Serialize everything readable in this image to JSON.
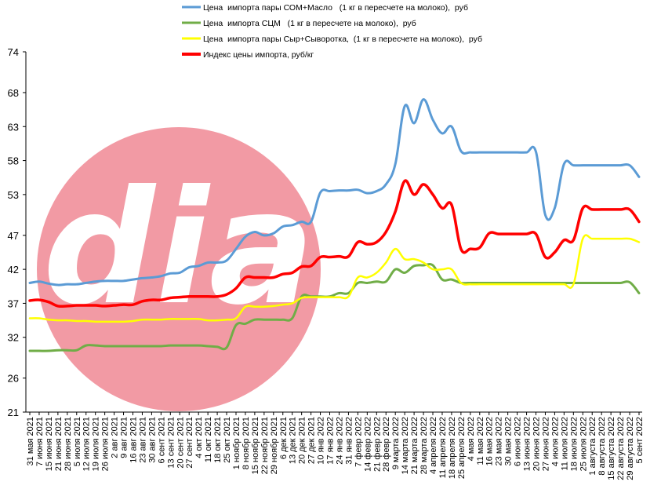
{
  "chart_data": {
    "type": "line",
    "ylim": [
      21,
      74
    ],
    "yticks": [
      21,
      26,
      32,
      37,
      42,
      47,
      53,
      58,
      63,
      68,
      74
    ],
    "grid": false,
    "legend_position": "top",
    "x": [
      "31 мая 2021",
      "7 июня 2021",
      "15 июня 2021",
      "21 июня 2021",
      "28 июня 2021",
      "5 июля 2021",
      "12 июля 2021",
      "19 июля 2021",
      "26 июля 2021",
      "2 авг 2021",
      "9 авг 2021",
      "16 авг 2021",
      "23 авг 2021",
      "30 авг 2021",
      "6 сент 2021",
      "13 сент 2021",
      "20 сент 2021",
      "27 сент 2021",
      "4 окт 2021",
      "11 окт 2021",
      "18 окт 2021",
      "25 окт 2021",
      "1 ноябр 2021",
      "8 ноябр 2021",
      "15 ноябр 2021",
      "22 ноябр 2021",
      "29 ноябр 2021",
      "6 дек 2021",
      "13 дек 2021",
      "20 дек 2021",
      "27 дек 2021",
      "10 янв 2022",
      "17 янв 2022",
      "24 янв 2022",
      "31 янв 2022",
      "7 февр 2022",
      "14 февр 2022",
      "21 февр 2022",
      "28 февр 2022",
      "9 марта 2022",
      "14 марта 2022",
      "21 марта 2022",
      "28 марта 2022",
      "4 апреля 2022",
      "11 апреля 2022",
      "18 апреля 2022",
      "25 апреля 2022",
      "4 мая 2022",
      "11 мая 2022",
      "16 мая 2022",
      "23 мая 2022",
      "30 мая 2022",
      "6 июня 2022",
      "13 июня 2022",
      "20 июня 2022",
      "27 июня 2022",
      "4 июля 2022",
      "11 июля 2022",
      "18 июля 2022",
      "25 июля 2022",
      "1 августа 2022",
      "8 августа 2022",
      "15 августа 2022",
      "22 августа 2022",
      "29 августа 2022",
      "5 сент 2022"
    ],
    "series": [
      {
        "name": "Цена  импорта пары СОМ+Масло   (1 кг в пересчете на молоко),  руб",
        "color": "#5b9bd5",
        "values": [
          40.0,
          40.2,
          39.9,
          39.7,
          39.8,
          39.8,
          40.0,
          40.2,
          40.3,
          40.3,
          40.3,
          40.5,
          40.7,
          40.8,
          41.0,
          41.4,
          41.5,
          42.3,
          42.5,
          43.0,
          43.0,
          43.3,
          45.0,
          46.8,
          47.5,
          47.0,
          47.3,
          48.3,
          48.5,
          49.0,
          49.0,
          53.3,
          53.5,
          53.6,
          53.6,
          53.7,
          53.2,
          53.5,
          54.5,
          57.5,
          66.0,
          63.5,
          67.0,
          64.0,
          62.0,
          63.0,
          59.4,
          59.2,
          59.2,
          59.2,
          59.2,
          59.2,
          59.2,
          59.2,
          59.3,
          50.0,
          51.0,
          57.5,
          57.3,
          57.3,
          57.3,
          57.3,
          57.3,
          57.3,
          57.3,
          55.6
        ]
      },
      {
        "name": "Цена  импорта СЦМ   (1 кг в пересчете на молоко),  руб",
        "color": "#70ad47",
        "values": [
          30.0,
          30.0,
          30.0,
          30.1,
          30.1,
          30.1,
          30.8,
          30.8,
          30.7,
          30.7,
          30.7,
          30.7,
          30.7,
          30.7,
          30.7,
          30.8,
          30.8,
          30.8,
          30.8,
          30.7,
          30.6,
          30.5,
          33.8,
          34.0,
          34.6,
          34.6,
          34.6,
          34.6,
          34.8,
          38.0,
          38.0,
          38.0,
          38.0,
          38.5,
          38.5,
          40.0,
          40.0,
          40.2,
          40.2,
          42.0,
          41.5,
          42.5,
          42.6,
          42.6,
          40.5,
          40.5,
          40.0,
          40.0,
          40.0,
          40.0,
          40.0,
          40.0,
          40.0,
          40.0,
          40.0,
          40.0,
          40.0,
          40.0,
          40.0,
          40.0,
          40.0,
          40.0,
          40.0,
          40.0,
          40.1,
          38.5
        ]
      },
      {
        "name": "Цена  импорта пары Сыр+Сыворотка,  (1 кг в пересчете на молоко),  руб",
        "color": "#ffff00",
        "values": [
          34.8,
          34.8,
          34.6,
          34.5,
          34.5,
          34.4,
          34.4,
          34.3,
          34.3,
          34.3,
          34.3,
          34.4,
          34.6,
          34.6,
          34.6,
          34.7,
          34.7,
          34.7,
          34.7,
          34.5,
          34.5,
          34.6,
          34.8,
          36.5,
          36.5,
          36.5,
          36.6,
          36.8,
          37.0,
          37.8,
          37.9,
          37.9,
          37.9,
          37.9,
          38.0,
          40.8,
          40.8,
          41.5,
          43.0,
          45.0,
          43.5,
          43.5,
          43.0,
          42.0,
          42.0,
          42.0,
          40.0,
          39.8,
          39.8,
          39.8,
          39.8,
          39.8,
          39.8,
          39.8,
          39.8,
          39.8,
          39.8,
          39.8,
          39.8,
          46.5,
          46.5,
          46.5,
          46.5,
          46.5,
          46.5,
          46.0
        ]
      },
      {
        "name": "Индекс цены импорта, руб/кг",
        "color": "#ff0000",
        "values": [
          37.4,
          37.5,
          37.2,
          36.6,
          36.6,
          36.7,
          36.7,
          36.7,
          36.6,
          36.7,
          36.8,
          36.8,
          37.3,
          37.5,
          37.5,
          37.8,
          37.9,
          38.0,
          38.0,
          38.0,
          38.0,
          38.3,
          39.2,
          40.8,
          40.8,
          40.8,
          40.8,
          41.3,
          41.5,
          42.4,
          42.5,
          43.8,
          43.8,
          43.9,
          43.9,
          46.0,
          45.7,
          46.0,
          47.5,
          50.5,
          55.0,
          53.0,
          54.5,
          53.0,
          51.0,
          51.5,
          45.0,
          45.0,
          45.2,
          47.3,
          47.2,
          47.2,
          47.2,
          47.2,
          47.2,
          43.8,
          44.5,
          46.3,
          46.3,
          51.0,
          50.8,
          50.8,
          50.8,
          50.8,
          50.8,
          49.0
        ]
      }
    ]
  },
  "watermark": {
    "text": "dia",
    "color": "#f29aa4"
  }
}
